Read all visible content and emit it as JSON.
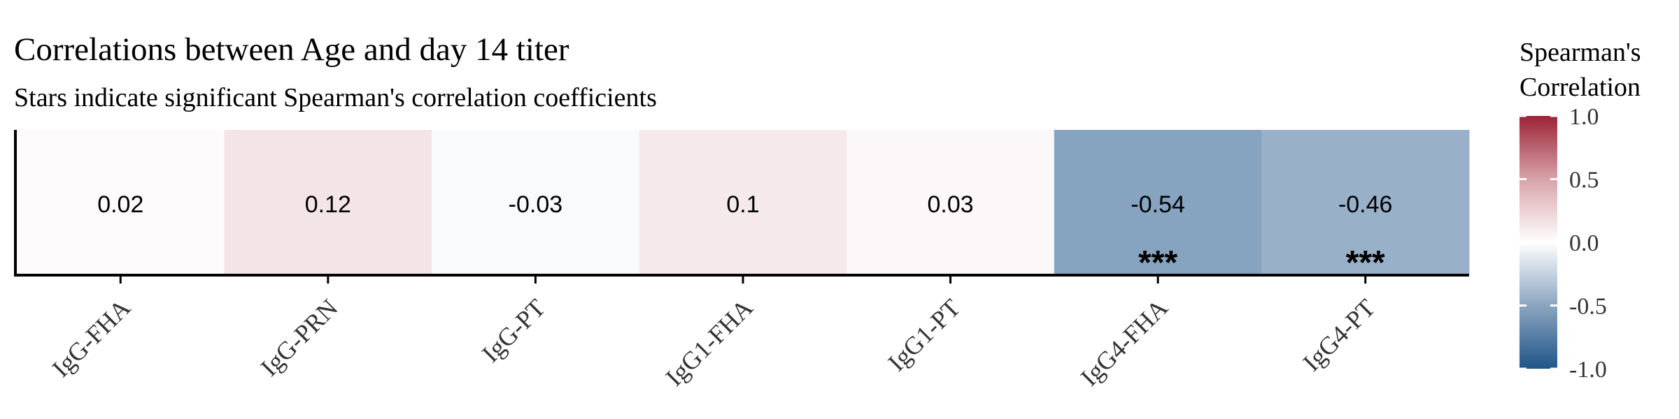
{
  "chart_data": {
    "type": "heatmap",
    "title": "Correlations between Age and day 14 titer",
    "subtitle": "Stars indicate significant Spearman's correlation coefficients",
    "categories": [
      "IgG-FHA",
      "IgG-PRN",
      "IgG-PT",
      "IgG1-FHA",
      "IgG1-PT",
      "IgG4-FHA",
      "IgG4-PT"
    ],
    "values": [
      0.02,
      0.12,
      -0.03,
      0.1,
      0.03,
      -0.54,
      -0.46
    ],
    "value_labels": [
      "0.02",
      "0.12",
      "-0.03",
      "0.1",
      "0.03",
      "-0.54",
      "-0.46"
    ],
    "significance": [
      "",
      "",
      "",
      "",
      "",
      "***",
      "***"
    ],
    "legend": {
      "title_line1": "Spearman's",
      "title_line2": "Correlation",
      "limits": [
        -1.0,
        1.0
      ],
      "ticks": [
        1.0,
        0.5,
        0.0,
        -0.5,
        -1.0
      ],
      "tick_labels": [
        "1.0",
        "0.5",
        "0.0",
        "-0.5",
        "-1.0"
      ],
      "placement": "right"
    },
    "color_scale": {
      "low": "#1f5589",
      "mid": "#ffffff",
      "high": "#9b2336"
    },
    "xlabel": "",
    "ylabel": "",
    "grid": false
  }
}
